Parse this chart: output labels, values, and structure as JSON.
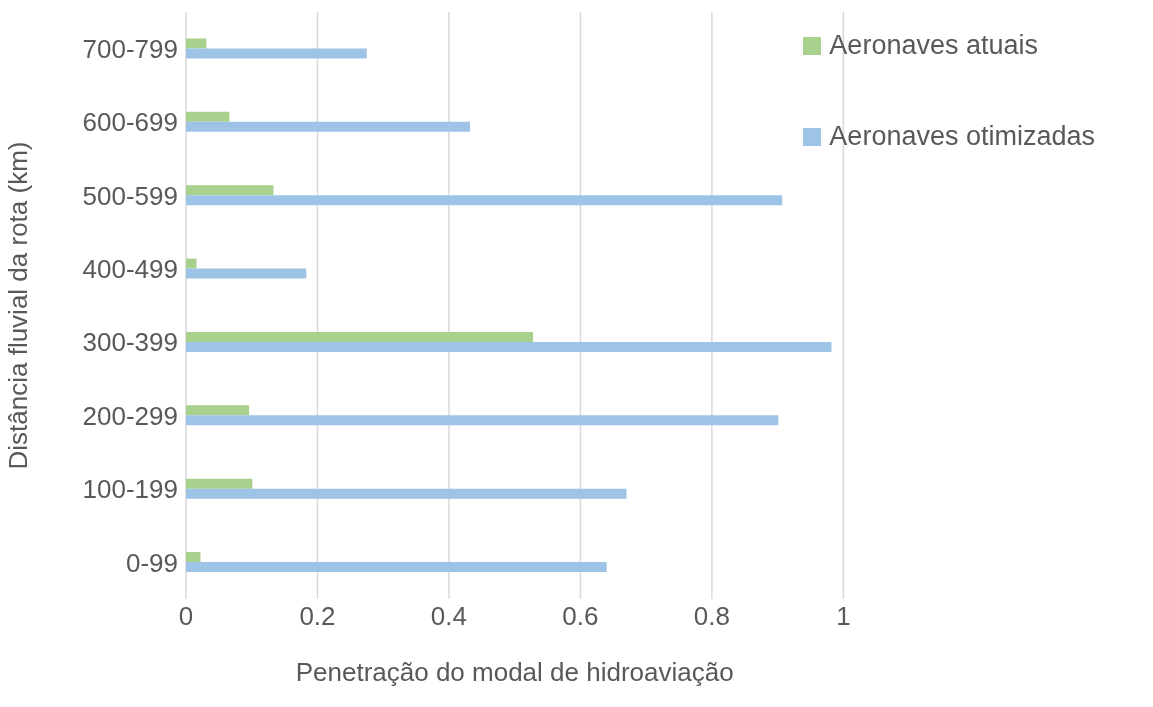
{
  "chart_data": {
    "type": "bar",
    "orientation": "horizontal",
    "xlabel": "Penetração do modal de hidroaviação",
    "ylabel": "Distância fluvial da rota (km)",
    "categories": [
      "700-799",
      "600-699",
      "500-599",
      "400-499",
      "300-399",
      "200-299",
      "100-199",
      "0-99"
    ],
    "series": [
      {
        "name": "Aeronaves atuais",
        "color": "#a9d18e",
        "values": [
          0.031,
          0.066,
          0.133,
          0.016,
          0.528,
          0.096,
          0.101,
          0.022
        ]
      },
      {
        "name": "Aeronaves otimizadas",
        "color": "#9dc3e6",
        "values": [
          0.275,
          0.432,
          0.907,
          0.183,
          0.982,
          0.901,
          0.67,
          0.64
        ]
      }
    ],
    "xlim": [
      0,
      1
    ],
    "xticks": [
      0,
      0.2,
      0.4,
      0.6,
      0.8,
      1
    ],
    "grid": "x",
    "legend": "top right"
  }
}
